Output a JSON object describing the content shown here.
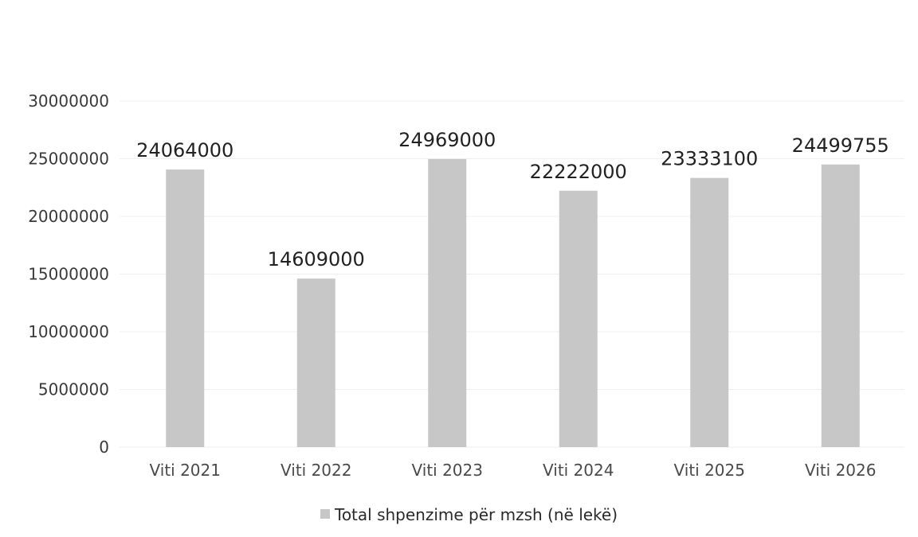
{
  "chart_data": {
    "type": "bar",
    "categories": [
      "Viti 2021",
      "Viti 2022",
      "Viti 2023",
      "Viti 2024",
      "Viti 2025",
      "Viti 2026"
    ],
    "series": [
      {
        "name": "Total shpenzime për mzsh (në lekë)",
        "values": [
          24064000,
          14609000,
          24969000,
          22222000,
          23333100,
          24499755
        ],
        "data_labels": [
          "24064000",
          "14609000",
          "24969000",
          "22222000",
          "23333100",
          "24499755"
        ],
        "color": "#c7c7c7"
      }
    ],
    "yticks": [
      "0",
      "5000000",
      "10000000",
      "15000000",
      "20000000",
      "25000000",
      "30000000"
    ],
    "ylim": [
      0,
      30000000
    ],
    "grid": true,
    "legend": "bottom",
    "title": "",
    "xlabel": "",
    "ylabel": ""
  }
}
